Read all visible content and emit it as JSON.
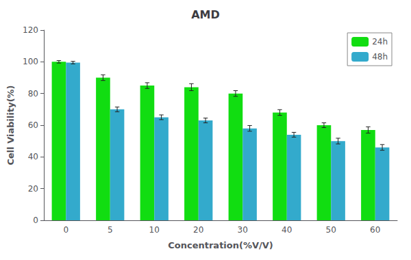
{
  "chart_data": {
    "type": "bar",
    "title": "AMD",
    "xlabel": "Concentration(%V/V)",
    "ylabel": "Cell Viability(%)",
    "categories": [
      "0",
      "5",
      "10",
      "20",
      "30",
      "40",
      "50",
      "60"
    ],
    "series": [
      {
        "name": "24h",
        "color": "#11dd11",
        "values": [
          100,
          90,
          85,
          84,
          80,
          68,
          60,
          57
        ],
        "errors": [
          0.8,
          1.8,
          1.8,
          2.2,
          1.8,
          1.8,
          1.5,
          2.0
        ]
      },
      {
        "name": "48h",
        "color": "#33aacc",
        "values": [
          99.5,
          70,
          65,
          63,
          58,
          54,
          50,
          46
        ],
        "errors": [
          0.8,
          1.5,
          1.5,
          1.5,
          1.8,
          1.5,
          1.8,
          1.8
        ]
      }
    ],
    "ylim": [
      0,
      120
    ],
    "yticks": [
      0,
      20,
      40,
      60,
      80,
      100,
      120
    ],
    "grid": false,
    "legend": "upper right"
  }
}
